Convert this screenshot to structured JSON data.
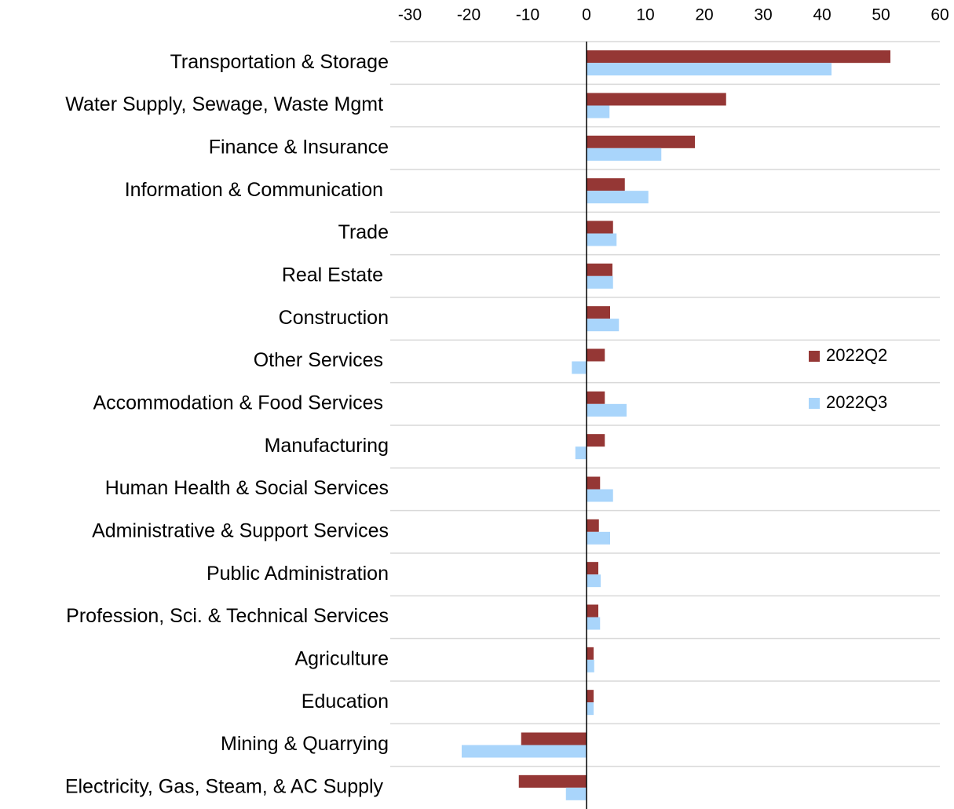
{
  "chart_data": {
    "type": "hbar",
    "categories": [
      "Transportation & Storage",
      "Water Supply, Sewage, Waste Mgmt ",
      "Finance & Insurance",
      "Information & Communication ",
      "Trade",
      "Real Estate ",
      "Construction",
      "Other Services ",
      "Accommodation & Food Services ",
      "Manufacturing",
      "Human Health & Social Services",
      "Administrative & Support Services",
      "Public Administration",
      "Profession, Sci. & Technical Services",
      "Agriculture",
      "Education",
      "Mining & Quarrying",
      "Electricity, Gas, Steam, & AC Supply "
    ],
    "series": [
      {
        "name": "2022Q2",
        "color": "#953735",
        "values": [
          51.6,
          23.7,
          18.4,
          6.5,
          4.5,
          4.4,
          4.0,
          3.1,
          3.1,
          3.1,
          2.3,
          2.1,
          2.0,
          2.0,
          1.2,
          1.2,
          -11.1,
          -11.5
        ]
      },
      {
        "name": "2022Q3",
        "color": "#a9d5fb",
        "values": [
          41.6,
          3.9,
          12.7,
          10.5,
          5.1,
          4.5,
          5.5,
          -2.5,
          6.8,
          -1.9,
          4.5,
          4.0,
          2.4,
          2.3,
          1.3,
          1.2,
          -21.2,
          -3.5
        ]
      }
    ],
    "xlim": [
      -30,
      60
    ],
    "xticks": [
      -30,
      -20,
      -10,
      0,
      10,
      20,
      30,
      40,
      50,
      60
    ],
    "legend": "right"
  }
}
